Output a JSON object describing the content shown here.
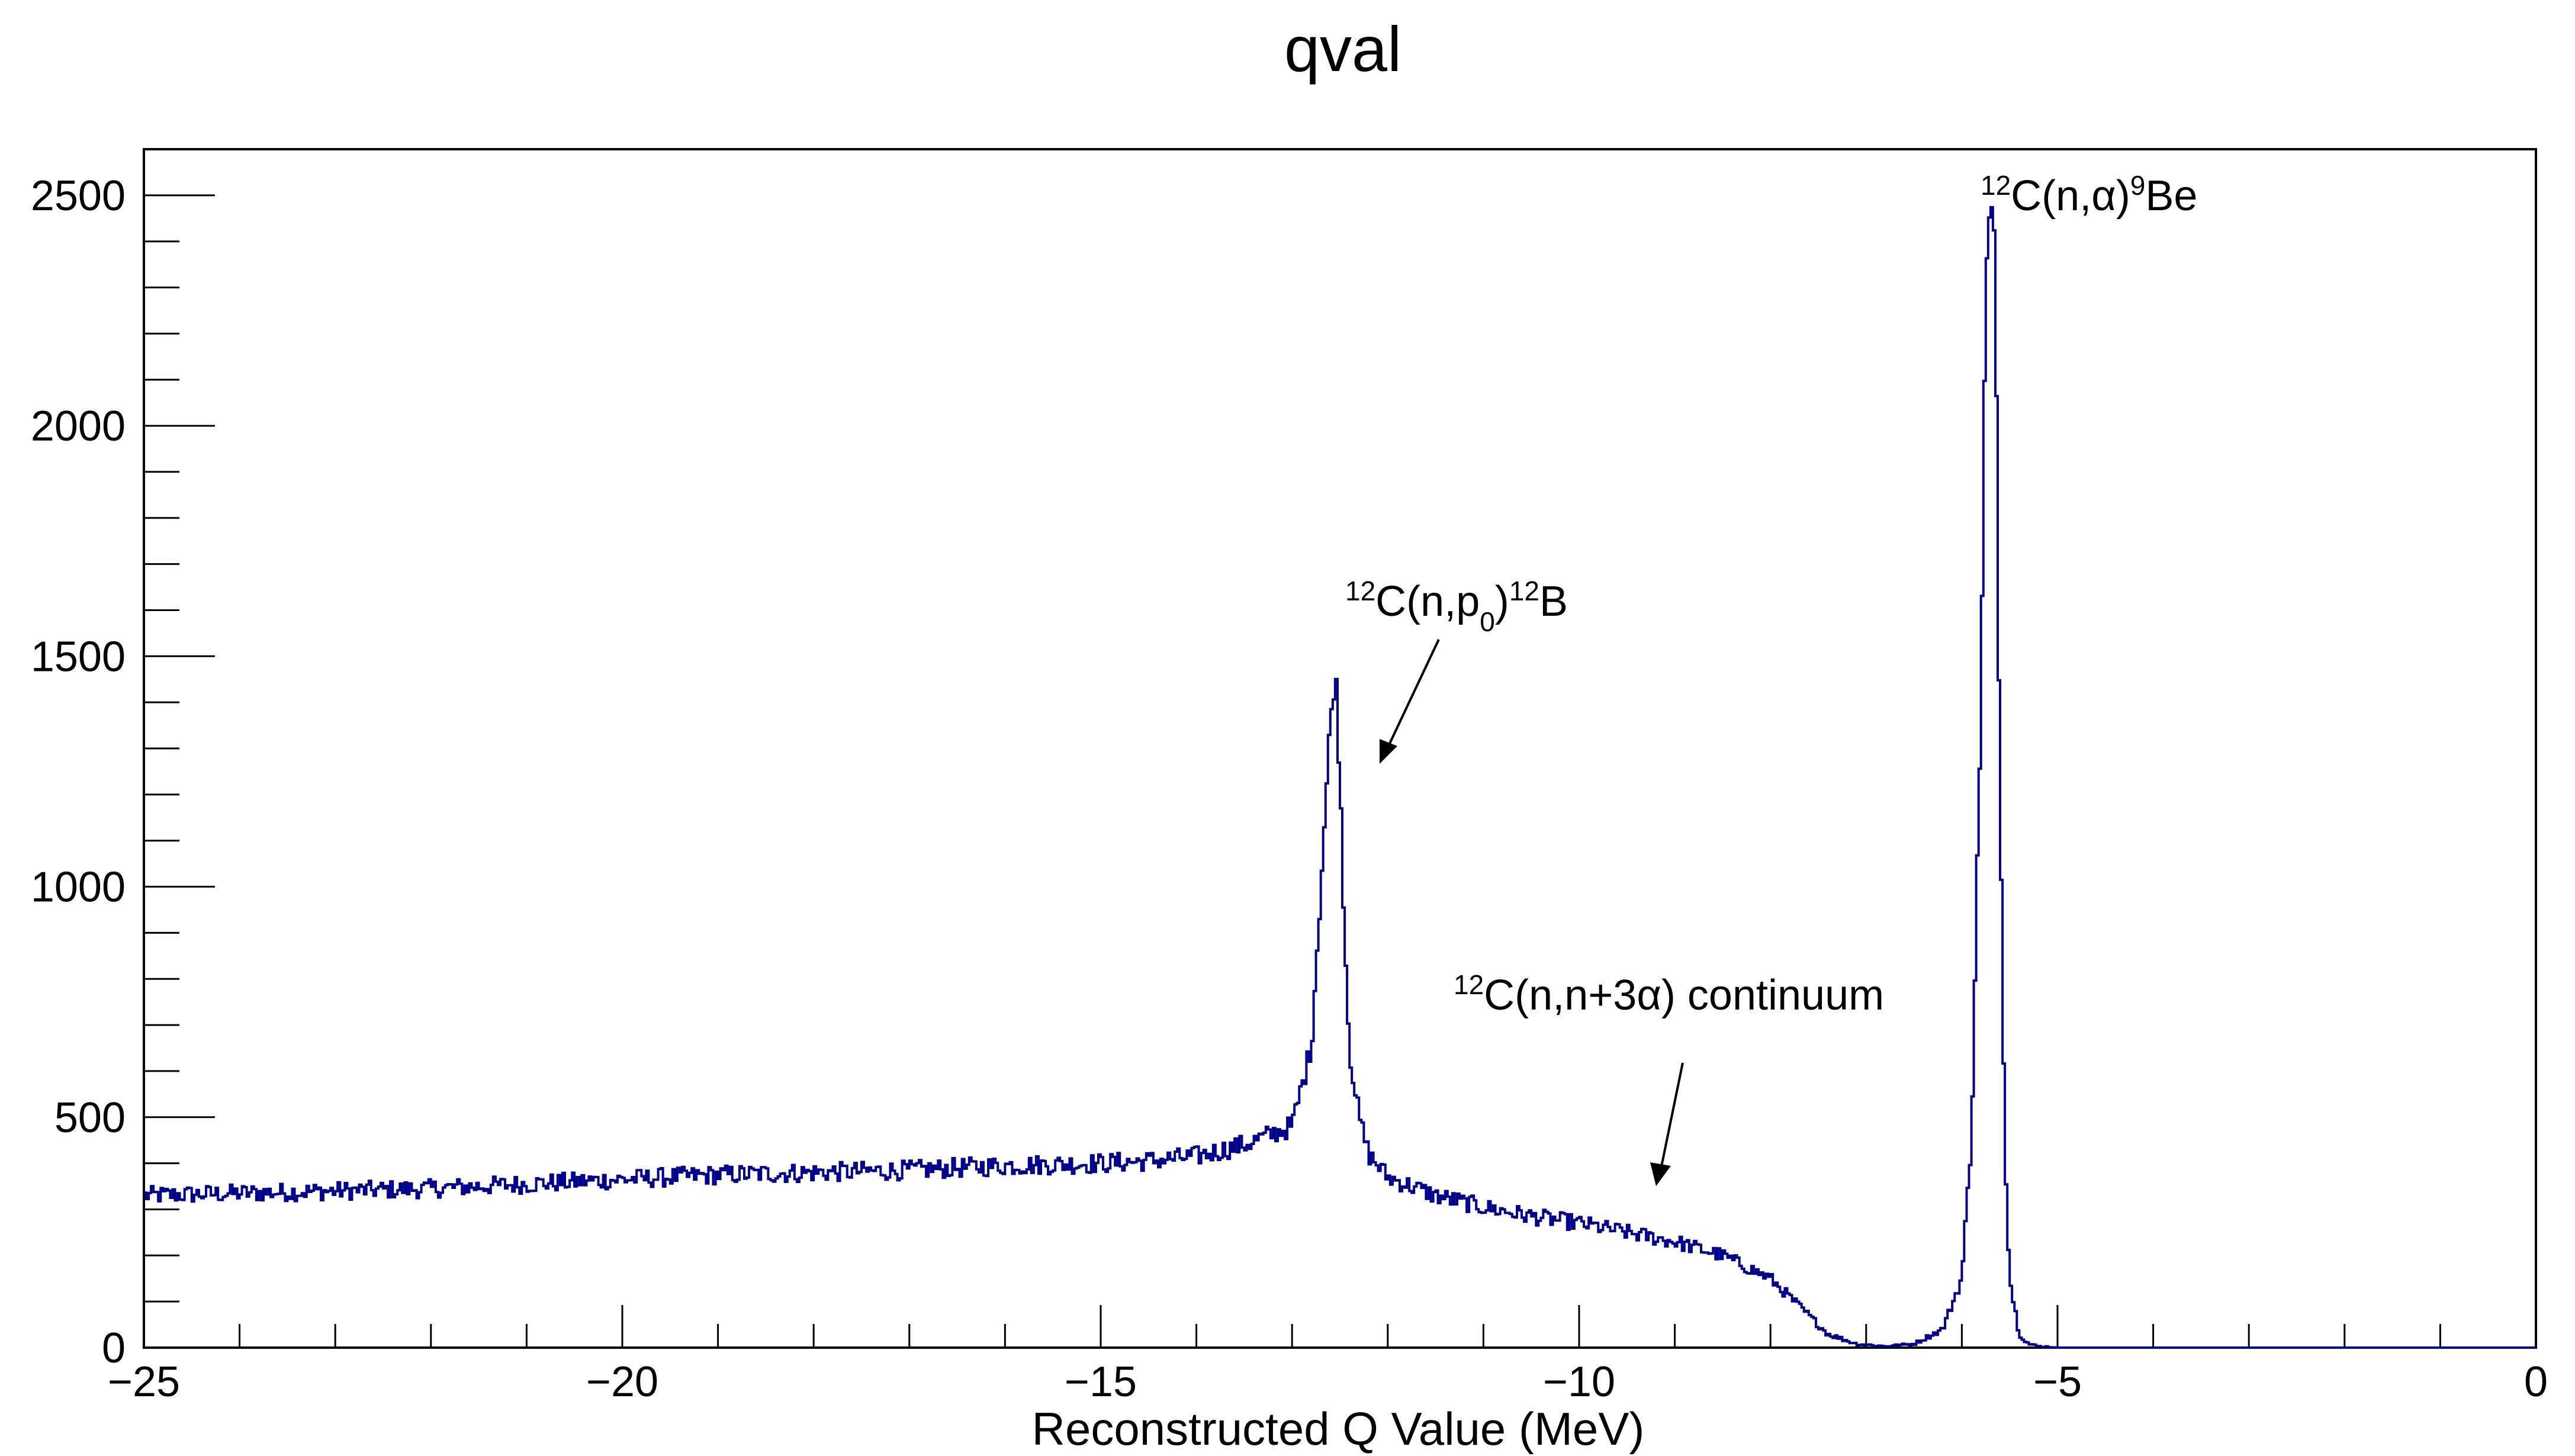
{
  "chart_data": {
    "type": "line",
    "title": "qval",
    "xlabel": "Reconstructed Q Value (MeV)",
    "ylabel": "",
    "xlim": [
      -25,
      0
    ],
    "ylim": [
      0,
      2600
    ],
    "grid": false,
    "legend": "none",
    "x_ticks": [
      -25,
      -20,
      -15,
      -10,
      -5,
      0
    ],
    "x_tick_labels": [
      "−25",
      "−20",
      "−15",
      "−10",
      "−5",
      "0"
    ],
    "y_ticks": [
      0,
      500,
      1000,
      1500,
      2000,
      2500
    ],
    "y_tick_labels": [
      "0",
      "500",
      "1000",
      "1500",
      "2000",
      "2500"
    ],
    "series": [
      {
        "color": "#00008b",
        "x": [
          -25,
          -24,
          -23,
          -22,
          -21,
          -20,
          -19,
          -18,
          -17,
          -16,
          -15,
          -14.5,
          -14,
          -13.5,
          -13,
          -12.8,
          -12.7,
          -12.6,
          -12.55,
          -12.5,
          -12.45,
          -12.4,
          -12.3,
          -12.2,
          -12.0,
          -11.5,
          -11,
          -10.5,
          -10,
          -9.5,
          -9,
          -8.5,
          -8,
          -7.7,
          -7.4,
          -7.1,
          -6.8,
          -6.5,
          -6.2,
          -6.0,
          -5.9,
          -5.8,
          -5.75,
          -5.7,
          -5.65,
          -5.6,
          -5.55,
          -5.5,
          -5.4,
          -5.3,
          -5.2,
          -5.1,
          -5.0,
          -4.0,
          -3.0,
          -2.0,
          -1.0,
          0
        ],
        "y": [
          330,
          335,
          340,
          345,
          355,
          365,
          375,
          380,
          385,
          395,
          400,
          405,
          415,
          440,
          480,
          650,
          1000,
          1350,
          1480,
          1250,
          900,
          650,
          500,
          420,
          370,
          330,
          305,
          285,
          270,
          250,
          230,
          200,
          150,
          90,
          30,
          8,
          3,
          8,
          40,
          150,
          450,
          1400,
          2300,
          2480,
          2350,
          1200,
          450,
          150,
          30,
          8,
          3,
          2,
          0,
          0,
          0,
          0,
          0,
          0
        ]
      }
    ],
    "annotations": [
      {
        "sup": "12",
        "base": "C(n,α)",
        "sup2": "9",
        "tail": "Be",
        "arrow": false
      },
      {
        "sup": "12",
        "base": "C(n,p",
        "sub": "0",
        "close": ")",
        "sup2": "12",
        "tail": "B",
        "arrow": true
      },
      {
        "sup": "12",
        "base": "C(n,n+3α) continuum",
        "arrow": true
      }
    ]
  }
}
